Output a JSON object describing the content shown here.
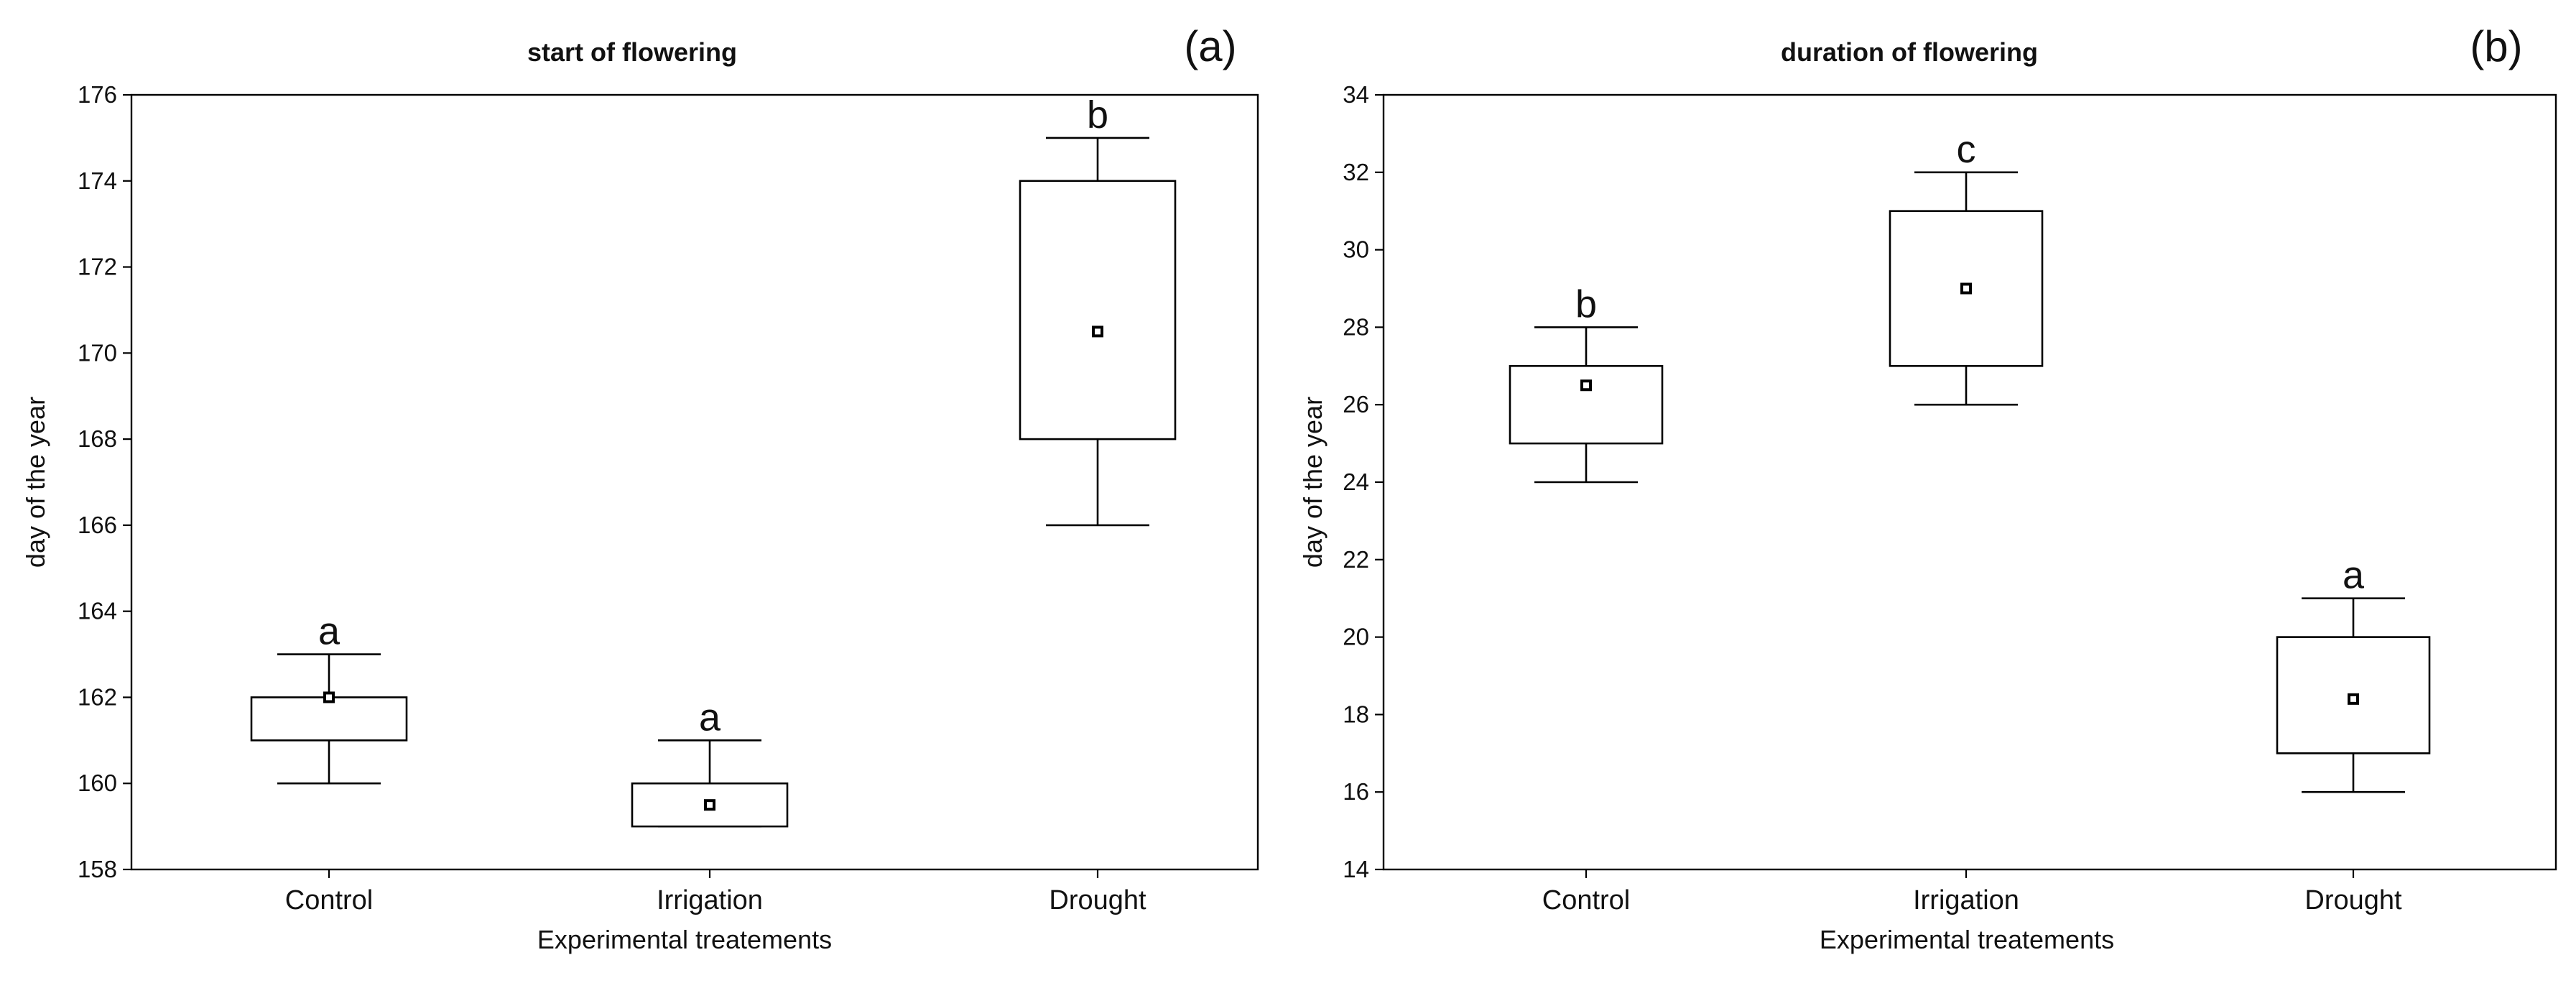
{
  "chart_data": [
    {
      "type": "box",
      "panel_label": "(a)",
      "title": "start of flowering",
      "xlabel": "Experimental treatements",
      "ylabel": "day of the year",
      "ylim": [
        158,
        176
      ],
      "yticks": [
        158,
        160,
        162,
        164,
        166,
        168,
        170,
        172,
        174,
        176
      ],
      "categories": [
        "Control",
        "Irrigation",
        "Drought"
      ],
      "boxes": [
        {
          "category": "Control",
          "whisker_low": 160,
          "q1": 161,
          "mean": 162,
          "q3": 162,
          "whisker_high": 163,
          "group": "a"
        },
        {
          "category": "Irrigation",
          "whisker_low": 159,
          "q1": 159,
          "mean": 159.5,
          "q3": 160,
          "whisker_high": 161,
          "group": "a"
        },
        {
          "category": "Drought",
          "whisker_low": 166,
          "q1": 168,
          "mean": 170.5,
          "q3": 174,
          "whisker_high": 175,
          "group": "b"
        }
      ]
    },
    {
      "type": "box",
      "panel_label": "(b)",
      "title": "duration of flowering",
      "xlabel": "Experimental treatements",
      "ylabel": "day of the year",
      "ylim": [
        14,
        34
      ],
      "yticks": [
        14,
        16,
        18,
        20,
        22,
        24,
        26,
        28,
        30,
        32,
        34
      ],
      "categories": [
        "Control",
        "Irrigation",
        "Drought"
      ],
      "boxes": [
        {
          "category": "Control",
          "whisker_low": 24,
          "q1": 25,
          "mean": 26.5,
          "q3": 27,
          "whisker_high": 28,
          "group": "b"
        },
        {
          "category": "Irrigation",
          "whisker_low": 26,
          "q1": 27,
          "mean": 29,
          "q3": 31,
          "whisker_high": 32,
          "group": "c"
        },
        {
          "category": "Drought",
          "whisker_low": 16,
          "q1": 17,
          "mean": 18.4,
          "q3": 20,
          "whisker_high": 21,
          "group": "a"
        }
      ]
    }
  ]
}
